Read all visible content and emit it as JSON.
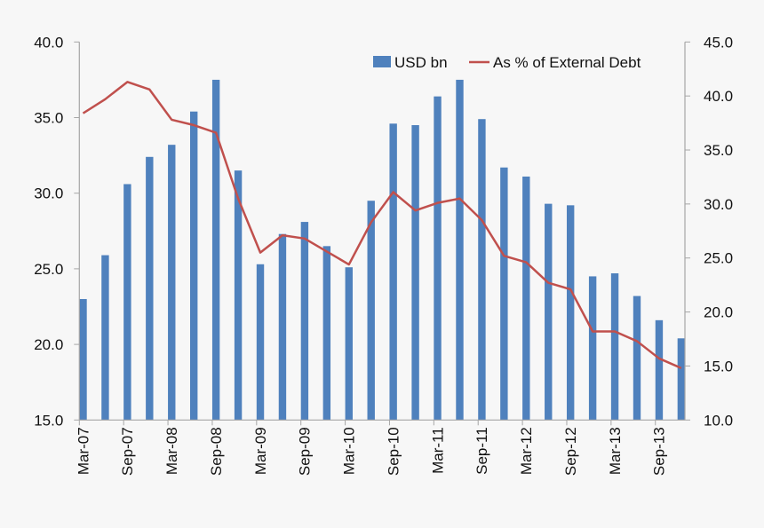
{
  "chart_data": {
    "type": "bar+line",
    "title": "",
    "categories": [
      "Mar-07",
      "Jun-07",
      "Sep-07",
      "Dec-07",
      "Mar-08",
      "Jun-08",
      "Sep-08",
      "Dec-08",
      "Mar-09",
      "Jun-09",
      "Sep-09",
      "Dec-09",
      "Mar-10",
      "Jun-10",
      "Sep-10",
      "Dec-10",
      "Mar-11",
      "Jun-11",
      "Sep-11",
      "Dec-11",
      "Mar-12",
      "Jun-12",
      "Sep-12",
      "Dec-12",
      "Mar-13",
      "Jun-13",
      "Sep-13",
      "Dec-13"
    ],
    "tick_labels": [
      "Mar-07",
      "Sep-07",
      "Mar-08",
      "Sep-08",
      "Mar-09",
      "Sep-09",
      "Mar-10",
      "Sep-10",
      "Mar-11",
      "Sep-11",
      "Mar-12",
      "Sep-12",
      "Mar-13",
      "Sep-13"
    ],
    "series": [
      {
        "name": "USD bn",
        "type": "bar",
        "axis": "left",
        "color": "#4F81BD",
        "values": [
          23.0,
          25.9,
          30.6,
          32.4,
          33.2,
          35.4,
          37.5,
          31.5,
          25.3,
          27.3,
          28.1,
          26.5,
          25.1,
          29.5,
          34.6,
          34.5,
          36.4,
          37.5,
          34.9,
          31.7,
          31.1,
          29.3,
          29.2,
          24.5,
          24.7,
          23.2,
          21.6,
          20.4
        ]
      },
      {
        "name": "As % of External Debt",
        "type": "line",
        "axis": "right",
        "color": "#C0504D",
        "values": [
          38.4,
          39.7,
          41.3,
          40.6,
          37.8,
          37.3,
          36.6,
          30.5,
          25.5,
          27.1,
          26.8,
          25.6,
          24.4,
          28.3,
          31.1,
          29.4,
          30.1,
          30.5,
          28.5,
          25.2,
          24.6,
          22.7,
          22.1,
          18.2,
          18.2,
          17.3,
          15.7,
          14.8
        ]
      }
    ],
    "left_axis": {
      "ylim": [
        15,
        40
      ],
      "ticks": [
        "15.0",
        "20.0",
        "25.0",
        "30.0",
        "35.0",
        "40.0"
      ]
    },
    "right_axis": {
      "ylim": [
        10,
        45
      ],
      "ticks": [
        "10.0",
        "15.0",
        "20.0",
        "25.0",
        "30.0",
        "35.0",
        "40.0",
        "45.0"
      ]
    },
    "grid": false,
    "legend": "top-right"
  }
}
